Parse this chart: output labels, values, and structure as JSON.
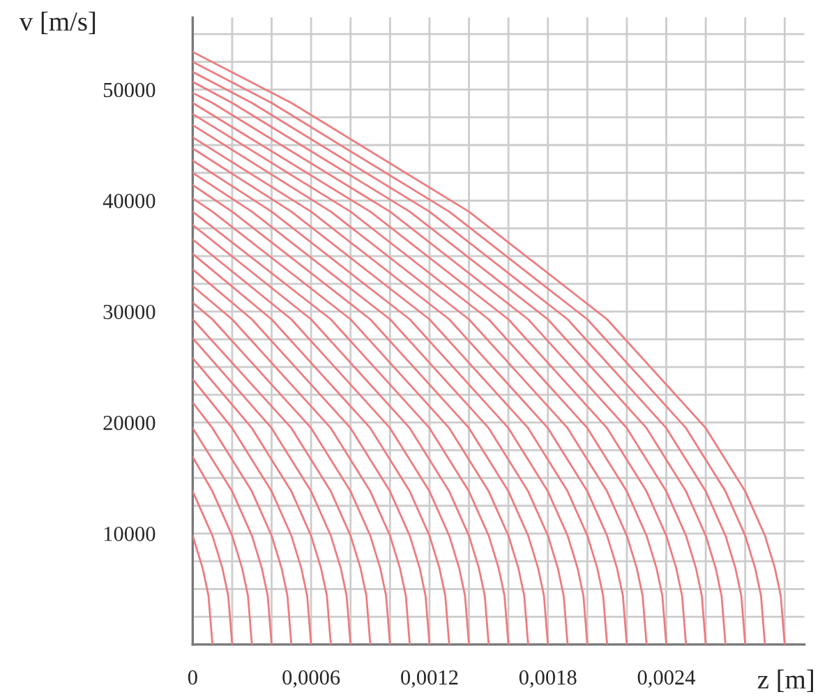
{
  "chart_data": {
    "type": "line",
    "xlabel": "z [m]",
    "ylabel": "v [m/s]",
    "xlim": [
      0,
      0.0031
    ],
    "ylim": [
      0,
      56500
    ],
    "xticks": [
      {
        "value": 0,
        "label": "0"
      },
      {
        "value": 0.0002,
        "label": null
      },
      {
        "value": 0.0004,
        "label": null
      },
      {
        "value": 0.0006,
        "label": "0,0006"
      },
      {
        "value": 0.0008,
        "label": null
      },
      {
        "value": 0.001,
        "label": null
      },
      {
        "value": 0.0012,
        "label": "0,0012"
      },
      {
        "value": 0.0014,
        "label": null
      },
      {
        "value": 0.0016,
        "label": null
      },
      {
        "value": 0.0018,
        "label": "0,0018"
      },
      {
        "value": 0.002,
        "label": null
      },
      {
        "value": 0.0022,
        "label": null
      },
      {
        "value": 0.0024,
        "label": "0,0024"
      },
      {
        "value": 0.0026,
        "label": null
      },
      {
        "value": 0.0028,
        "label": null
      },
      {
        "value": 0.003,
        "label": null
      }
    ],
    "yticks": [
      {
        "value": 0,
        "label": null
      },
      {
        "value": 2500,
        "label": null
      },
      {
        "value": 5000,
        "label": null
      },
      {
        "value": 7500,
        "label": null
      },
      10000,
      {
        "value": 12500,
        "label": null
      },
      {
        "value": 15000,
        "label": null
      },
      {
        "value": 17500,
        "label": null
      },
      20000,
      {
        "value": 22500,
        "label": null
      },
      {
        "value": 25000,
        "label": null
      },
      {
        "value": 27500,
        "label": null
      },
      30000,
      {
        "value": 32500,
        "label": null
      },
      {
        "value": 35000,
        "label": null
      },
      {
        "value": 37500,
        "label": null
      },
      40000,
      {
        "value": 42500,
        "label": null
      },
      {
        "value": 45000,
        "label": null
      },
      {
        "value": 47500,
        "label": null
      },
      50000,
      {
        "value": 52500,
        "label": null
      },
      {
        "value": 55000,
        "label": null
      }
    ],
    "grid": true,
    "legend": false,
    "marker": "none",
    "line_style": "solid",
    "series": [
      {
        "color": "#ee7b7f",
        "x": [
          0,
          5e-05,
          8e-05,
          0.0001
        ],
        "values": [
          9800,
          6900,
          4400,
          0
        ]
      },
      {
        "color": "#ee7b7f",
        "x": [
          0,
          0.0001,
          0.00015,
          0.00018,
          0.0002
        ],
        "values": [
          13800,
          9800,
          6900,
          4400,
          0
        ]
      },
      {
        "color": "#ee7b7f",
        "x": [
          0,
          0.0001,
          0.0002,
          0.00025,
          0.00028,
          0.0003
        ],
        "values": [
          16900,
          13800,
          9800,
          6900,
          4400,
          0
        ]
      },
      {
        "color": "#ee7b7f",
        "x": [
          0,
          0.0002,
          0.0003,
          0.00035,
          0.00038,
          0.0004
        ],
        "values": [
          19500,
          13800,
          9800,
          6900,
          4400,
          0
        ]
      },
      {
        "color": "#ee7b7f",
        "x": [
          0,
          0.0001,
          0.0003,
          0.0004,
          0.00045,
          0.00048,
          0.0005
        ],
        "values": [
          21800,
          19500,
          13800,
          9800,
          6900,
          4400,
          0
        ]
      },
      {
        "color": "#ee7b7f",
        "x": [
          0,
          0.0002,
          0.0004,
          0.0005,
          0.00055,
          0.00058,
          0.0006
        ],
        "values": [
          23900,
          19500,
          13800,
          9800,
          6900,
          4400,
          0
        ]
      },
      {
        "color": "#ee7b7f",
        "x": [
          0,
          0.0003,
          0.0005,
          0.0006,
          0.00065,
          0.00068,
          0.0007
        ],
        "values": [
          25800,
          19500,
          13800,
          9800,
          6900,
          4400,
          0
        ]
      },
      {
        "color": "#ee7b7f",
        "x": [
          0,
          0.0004,
          0.0006,
          0.0007,
          0.00075,
          0.00078,
          0.0008
        ],
        "values": [
          27600,
          19500,
          13800,
          9800,
          6900,
          4400,
          0
        ]
      },
      {
        "color": "#ee7b7f",
        "x": [
          0,
          0.0005,
          0.0007,
          0.0008,
          0.00085,
          0.00088,
          0.0009
        ],
        "values": [
          29300,
          19500,
          13800,
          9800,
          6900,
          4400,
          0
        ]
      },
      {
        "color": "#ee7b7f",
        "x": [
          0,
          0.0001,
          0.0006,
          0.0008,
          0.0009,
          0.00095,
          0.00098,
          0.001
        ],
        "values": [
          30800,
          29300,
          19500,
          13800,
          9800,
          6900,
          4400,
          0
        ]
      },
      {
        "color": "#ee7b7f",
        "x": [
          0,
          0.0002,
          0.0007,
          0.0009,
          0.001,
          0.00105,
          0.00108,
          0.0011
        ],
        "values": [
          32300,
          29300,
          19500,
          13800,
          9800,
          6900,
          4400,
          0
        ]
      },
      {
        "color": "#ee7b7f",
        "x": [
          0,
          0.0003,
          0.0008,
          0.001,
          0.0011,
          0.00115,
          0.00118,
          0.0012
        ],
        "values": [
          33800,
          29300,
          19500,
          13800,
          9800,
          6900,
          4400,
          0
        ]
      },
      {
        "color": "#ee7b7f",
        "x": [
          0,
          0.0004,
          0.0009,
          0.0011,
          0.0012,
          0.00125,
          0.00128,
          0.0013
        ],
        "values": [
          35200,
          29300,
          19500,
          13800,
          9800,
          6900,
          4400,
          0
        ]
      },
      {
        "color": "#ee7b7f",
        "x": [
          0,
          0.0005,
          0.001,
          0.0012,
          0.0013,
          0.00135,
          0.00138,
          0.0014
        ],
        "values": [
          36500,
          29300,
          19500,
          13800,
          9800,
          6900,
          4400,
          0
        ]
      },
      {
        "color": "#ee7b7f",
        "x": [
          0,
          0.0006,
          0.0011,
          0.0013,
          0.0014,
          0.00145,
          0.00148,
          0.0015
        ],
        "values": [
          37800,
          29300,
          19500,
          13800,
          9800,
          6900,
          4400,
          0
        ]
      },
      {
        "color": "#ee7b7f",
        "x": [
          0,
          0.0007,
          0.0012,
          0.0014,
          0.0015,
          0.00155,
          0.00158,
          0.0016
        ],
        "values": [
          39000,
          29300,
          19500,
          13800,
          9800,
          6900,
          4400,
          0
        ]
      },
      {
        "color": "#ee7b7f",
        "x": [
          0,
          0.0001,
          0.0008,
          0.0013,
          0.0015,
          0.0016,
          0.00165,
          0.00168,
          0.0017
        ],
        "values": [
          40200,
          39000,
          29300,
          19500,
          13800,
          9800,
          6900,
          4400,
          0
        ]
      },
      {
        "color": "#ee7b7f",
        "x": [
          0,
          0.0002,
          0.0009,
          0.0014,
          0.0016,
          0.0017,
          0.00175,
          0.00178,
          0.0018
        ],
        "values": [
          41400,
          39000,
          29300,
          19500,
          13800,
          9800,
          6900,
          4400,
          0
        ]
      },
      {
        "color": "#ee7b7f",
        "x": [
          0,
          0.0003,
          0.001,
          0.0015,
          0.0017,
          0.0018,
          0.00185,
          0.00188,
          0.0019
        ],
        "values": [
          42500,
          39000,
          29300,
          19500,
          13800,
          9800,
          6900,
          4400,
          0
        ]
      },
      {
        "color": "#ee7b7f",
        "x": [
          0,
          0.0004,
          0.0011,
          0.0016,
          0.0018,
          0.0019,
          0.00195,
          0.00198,
          0.002
        ],
        "values": [
          43600,
          39000,
          29300,
          19500,
          13800,
          9800,
          6900,
          4400,
          0
        ]
      },
      {
        "color": "#ee7b7f",
        "x": [
          0,
          0.0005,
          0.0012,
          0.0017,
          0.0019,
          0.002,
          0.00205,
          0.00208,
          0.0021
        ],
        "values": [
          44700,
          39000,
          29300,
          19500,
          13800,
          9800,
          6900,
          4400,
          0
        ]
      },
      {
        "color": "#ee7b7f",
        "x": [
          0,
          0.0006,
          0.0013,
          0.0018,
          0.002,
          0.0021,
          0.00215,
          0.00218,
          0.0022
        ],
        "values": [
          45700,
          39000,
          29300,
          19500,
          13800,
          9800,
          6900,
          4400,
          0
        ]
      },
      {
        "color": "#ee7b7f",
        "x": [
          0,
          0.0007,
          0.0014,
          0.0019,
          0.0021,
          0.0022,
          0.00225,
          0.00228,
          0.0023
        ],
        "values": [
          46800,
          39000,
          29300,
          19500,
          13800,
          9800,
          6900,
          4400,
          0
        ]
      },
      {
        "color": "#ee7b7f",
        "x": [
          0,
          0.0008,
          0.0015,
          0.002,
          0.0022,
          0.0023,
          0.00235,
          0.00238,
          0.0024
        ],
        "values": [
          47800,
          39000,
          29300,
          19500,
          13800,
          9800,
          6900,
          4400,
          0
        ]
      },
      {
        "color": "#ee7b7f",
        "x": [
          0,
          0.0009,
          0.0016,
          0.0021,
          0.0023,
          0.0024,
          0.00245,
          0.00248,
          0.0025
        ],
        "values": [
          48800,
          39000,
          29300,
          19500,
          13800,
          9800,
          6900,
          4400,
          0
        ]
      },
      {
        "color": "#ee7b7f",
        "x": [
          0,
          0.0001,
          0.001,
          0.0017,
          0.0022,
          0.0024,
          0.0025,
          0.00255,
          0.00258,
          0.0026
        ],
        "values": [
          49700,
          48800,
          39000,
          29300,
          19500,
          13800,
          9800,
          6900,
          4400,
          0
        ]
      },
      {
        "color": "#ee7b7f",
        "x": [
          0,
          0.0002,
          0.0011,
          0.0018,
          0.0023,
          0.0025,
          0.0026,
          0.00265,
          0.00268,
          0.0027
        ],
        "values": [
          50700,
          48800,
          39000,
          29300,
          19500,
          13800,
          9800,
          6900,
          4400,
          0
        ]
      },
      {
        "color": "#ee7b7f",
        "x": [
          0,
          0.0003,
          0.0012,
          0.0019,
          0.0024,
          0.0026,
          0.0027,
          0.00275,
          0.00278,
          0.0028
        ],
        "values": [
          51600,
          48800,
          39000,
          29300,
          19500,
          13800,
          9800,
          6900,
          4400,
          0
        ]
      },
      {
        "color": "#ee7b7f",
        "x": [
          0,
          0.0004,
          0.0013,
          0.002,
          0.0025,
          0.0027,
          0.0028,
          0.00285,
          0.00288,
          0.0029
        ],
        "values": [
          52500,
          48800,
          39000,
          29300,
          19500,
          13800,
          9800,
          6900,
          4400,
          0
        ]
      },
      {
        "color": "#ee7b7f",
        "x": [
          0,
          0.0005,
          0.0014,
          0.0021,
          0.0026,
          0.0028,
          0.0029,
          0.00295,
          0.00298,
          0.003
        ],
        "values": [
          53400,
          48800,
          39000,
          29300,
          19500,
          13800,
          9800,
          6900,
          4400,
          0
        ]
      }
    ]
  }
}
